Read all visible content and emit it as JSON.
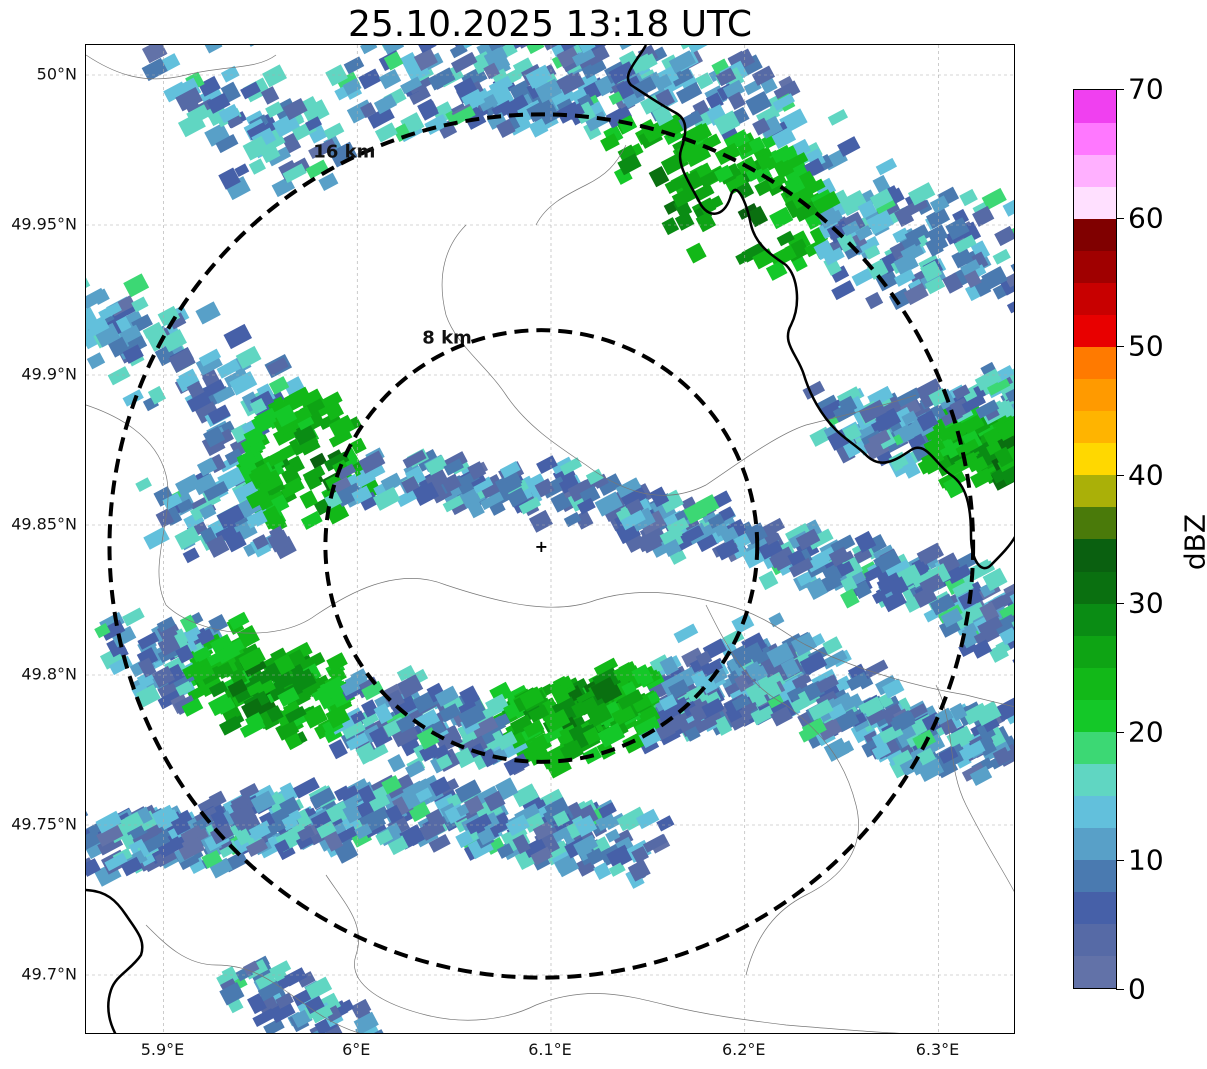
{
  "title": "25.10.2025 13:18 UTC",
  "map": {
    "lat_range": [
      49.68,
      50.01
    ],
    "lon_range": [
      5.86,
      6.34
    ],
    "radar_site": {
      "lon": 6.095,
      "lat": 49.843
    },
    "range_rings": [
      {
        "label": "8 km",
        "radius_km": 8
      },
      {
        "label": "16 km",
        "radius_km": 16
      }
    ],
    "grid": "on",
    "y_ticks": [
      {
        "label": "50°N",
        "lat": 50.0
      },
      {
        "label": "49.95°N",
        "lat": 49.95
      },
      {
        "label": "49.9°N",
        "lat": 49.9
      },
      {
        "label": "49.85°N",
        "lat": 49.85
      },
      {
        "label": "49.8°N",
        "lat": 49.8
      },
      {
        "label": "49.75°N",
        "lat": 49.75
      },
      {
        "label": "49.7°N",
        "lat": 49.7
      }
    ],
    "x_ticks": [
      {
        "label": "5.9°E",
        "lon": 5.9
      },
      {
        "label": "6°E",
        "lon": 6.0
      },
      {
        "label": "6.1°E",
        "lon": 6.1
      },
      {
        "label": "6.2°E",
        "lon": 6.2
      },
      {
        "label": "6.3°E",
        "lon": 6.3
      }
    ],
    "precipitation_bands": [
      {
        "name": "north-west cluster",
        "peak_dbz": 20
      },
      {
        "name": "north-east cluster",
        "peak_dbz": 33
      },
      {
        "name": "central band",
        "peak_dbz": 20
      },
      {
        "name": "southern band",
        "peak_dbz": 32
      },
      {
        "name": "east edge cell",
        "peak_dbz": 30
      }
    ]
  },
  "colorbar": {
    "label": "dBZ",
    "min": 0,
    "max": 70,
    "ticks": [
      "0",
      "10",
      "20",
      "30",
      "40",
      "50",
      "60",
      "70"
    ],
    "colors": [
      "#6272a8",
      "#566aa6",
      "#4660a8",
      "#4a7ab0",
      "#58a0c8",
      "#62c0dc",
      "#60d6c2",
      "#3cd874",
      "#14c828",
      "#12b818",
      "#0ea414",
      "#0a8c14",
      "#0a7010",
      "#0a6010",
      "#4a7a0a",
      "#aab008",
      "#ffd800",
      "#ffb400",
      "#ff9a00",
      "#ff7a00",
      "#e80000",
      "#c80000",
      "#a00000",
      "#800000",
      "#ffe0ff",
      "#ffb0ff",
      "#ff78ff",
      "#f040f0"
    ]
  }
}
